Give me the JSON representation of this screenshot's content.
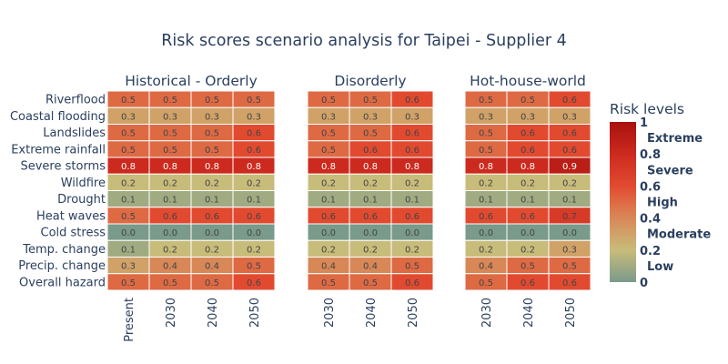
{
  "chart_data": {
    "type": "heatmap",
    "title": "Risk scores scenario analysis for Taipei - Supplier 4",
    "hazards": [
      "Riverflood",
      "Coastal flooding",
      "Landslides",
      "Extreme rainfall",
      "Severe storms",
      "Wildfire",
      "Drought",
      "Heat waves",
      "Cold stress",
      "Temp. change",
      "Precip. change",
      "Overall hazard"
    ],
    "panels": [
      {
        "name": "Historical - Orderly",
        "columns": [
          "Present",
          "2030",
          "2040",
          "2050"
        ],
        "values": [
          [
            0.5,
            0.5,
            0.5,
            0.5
          ],
          [
            0.3,
            0.3,
            0.3,
            0.3
          ],
          [
            0.5,
            0.5,
            0.5,
            0.6
          ],
          [
            0.5,
            0.5,
            0.5,
            0.6
          ],
          [
            0.8,
            0.8,
            0.8,
            0.8
          ],
          [
            0.2,
            0.2,
            0.2,
            0.2
          ],
          [
            0.1,
            0.1,
            0.1,
            0.1
          ],
          [
            0.5,
            0.6,
            0.6,
            0.6
          ],
          [
            0.0,
            0.0,
            0.0,
            0.0
          ],
          [
            0.1,
            0.2,
            0.2,
            0.2
          ],
          [
            0.3,
            0.4,
            0.4,
            0.5
          ],
          [
            0.5,
            0.5,
            0.5,
            0.6
          ]
        ]
      },
      {
        "name": "Disorderly",
        "columns": [
          "2030",
          "2040",
          "2050"
        ],
        "values": [
          [
            0.5,
            0.5,
            0.6
          ],
          [
            0.3,
            0.3,
            0.3
          ],
          [
            0.5,
            0.5,
            0.6
          ],
          [
            0.5,
            0.6,
            0.6
          ],
          [
            0.8,
            0.8,
            0.8
          ],
          [
            0.2,
            0.2,
            0.2
          ],
          [
            0.1,
            0.1,
            0.1
          ],
          [
            0.6,
            0.6,
            0.6
          ],
          [
            0.0,
            0.0,
            0.0
          ],
          [
            0.2,
            0.2,
            0.2
          ],
          [
            0.4,
            0.4,
            0.5
          ],
          [
            0.5,
            0.5,
            0.6
          ]
        ]
      },
      {
        "name": "Hot-house-world",
        "columns": [
          "2030",
          "2040",
          "2050"
        ],
        "values": [
          [
            0.5,
            0.5,
            0.6
          ],
          [
            0.3,
            0.3,
            0.3
          ],
          [
            0.5,
            0.6,
            0.6
          ],
          [
            0.5,
            0.6,
            0.6
          ],
          [
            0.8,
            0.8,
            0.9
          ],
          [
            0.2,
            0.2,
            0.2
          ],
          [
            0.1,
            0.1,
            0.1
          ],
          [
            0.6,
            0.6,
            0.7
          ],
          [
            0.0,
            0.0,
            0.0
          ],
          [
            0.2,
            0.2,
            0.3
          ],
          [
            0.4,
            0.5,
            0.5
          ],
          [
            0.5,
            0.6,
            0.6
          ]
        ]
      }
    ],
    "colorbar": {
      "title": "Risk levels",
      "range": [
        0,
        1
      ],
      "ticks": [
        "0",
        "0.2",
        "0.4",
        "0.6",
        "0.8",
        "1"
      ],
      "levels": [
        "Low",
        "Moderate",
        "High",
        "Severe",
        "Extreme"
      ],
      "colorscale": [
        [
          0.0,
          "#7a9a8a"
        ],
        [
          0.2,
          "#c8bc7a"
        ],
        [
          0.45,
          "#dc7a4e"
        ],
        [
          0.6,
          "#e24a30"
        ],
        [
          0.8,
          "#cc2a1e"
        ],
        [
          1.0,
          "#a8110e"
        ]
      ]
    }
  }
}
